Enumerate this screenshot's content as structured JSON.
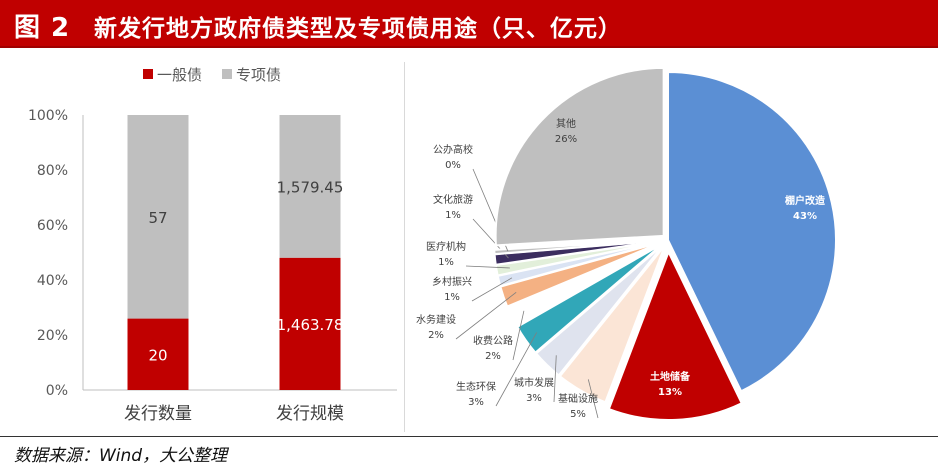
{
  "header": {
    "figure_number": "图 2",
    "title": "新发行地方政府债类型及专项债用途（只、亿元）"
  },
  "footer": {
    "source": "数据来源：Wind，大公整理"
  },
  "colors": {
    "brand_red": "#c00000",
    "general_bond": "#c00000",
    "special_bond": "#bfbfbf"
  },
  "chart_data": [
    {
      "type": "bar",
      "stacked": "percent",
      "categories": [
        "发行数量",
        "发行规模"
      ],
      "series": [
        {
          "name": "一般债",
          "color": "#c00000",
          "values": [
            20,
            1463.78
          ],
          "labels": [
            "20",
            "1,463.78"
          ]
        },
        {
          "name": "专项债",
          "color": "#bfbfbf",
          "values": [
            57,
            1579.45
          ],
          "labels": [
            "57",
            "1,579.45"
          ]
        }
      ],
      "yticks": [
        "0%",
        "20%",
        "40%",
        "60%",
        "80%",
        "100%"
      ],
      "ylim": [
        0,
        100
      ],
      "legend": "top",
      "grid": false
    },
    {
      "type": "pie",
      "slices": [
        {
          "name": "棚户改造",
          "label": "43%",
          "value": 43,
          "color": "#5b8fd4",
          "exploded": false
        },
        {
          "name": "土地储备",
          "label": "13%",
          "value": 13,
          "color": "#c00000",
          "exploded": true
        },
        {
          "name": "基础设施",
          "label": "5%",
          "value": 5,
          "color": "#fbe5d6",
          "exploded": false
        },
        {
          "name": "城市发展",
          "label": "3%",
          "value": 3,
          "color": "#dfe3ee",
          "exploded": false
        },
        {
          "name": "生态环保",
          "label": "3%",
          "value": 3,
          "color": "#31a7b8",
          "exploded": false
        },
        {
          "name": "收费公路",
          "label": "2%",
          "value": 2,
          "color": "#ffffff",
          "exploded": false
        },
        {
          "name": "水务建设",
          "label": "2%",
          "value": 2,
          "color": "#f4b183",
          "exploded": false
        },
        {
          "name": "乡村振兴",
          "label": "1%",
          "value": 1,
          "color": "#dae3f3",
          "exploded": false
        },
        {
          "name": "医疗机构",
          "label": "1%",
          "value": 1,
          "color": "#e2efda",
          "exploded": false
        },
        {
          "name": "文化旅游",
          "label": "1%",
          "value": 1,
          "color": "#3b2d5f",
          "exploded": false
        },
        {
          "name": "公办高校",
          "label": "0%",
          "value": 0.4,
          "color": "#bfbfbf",
          "exploded": false
        },
        {
          "name": "其他",
          "label": "26%",
          "value": 26,
          "color": "#bfbfbf",
          "exploded": false
        }
      ]
    }
  ]
}
